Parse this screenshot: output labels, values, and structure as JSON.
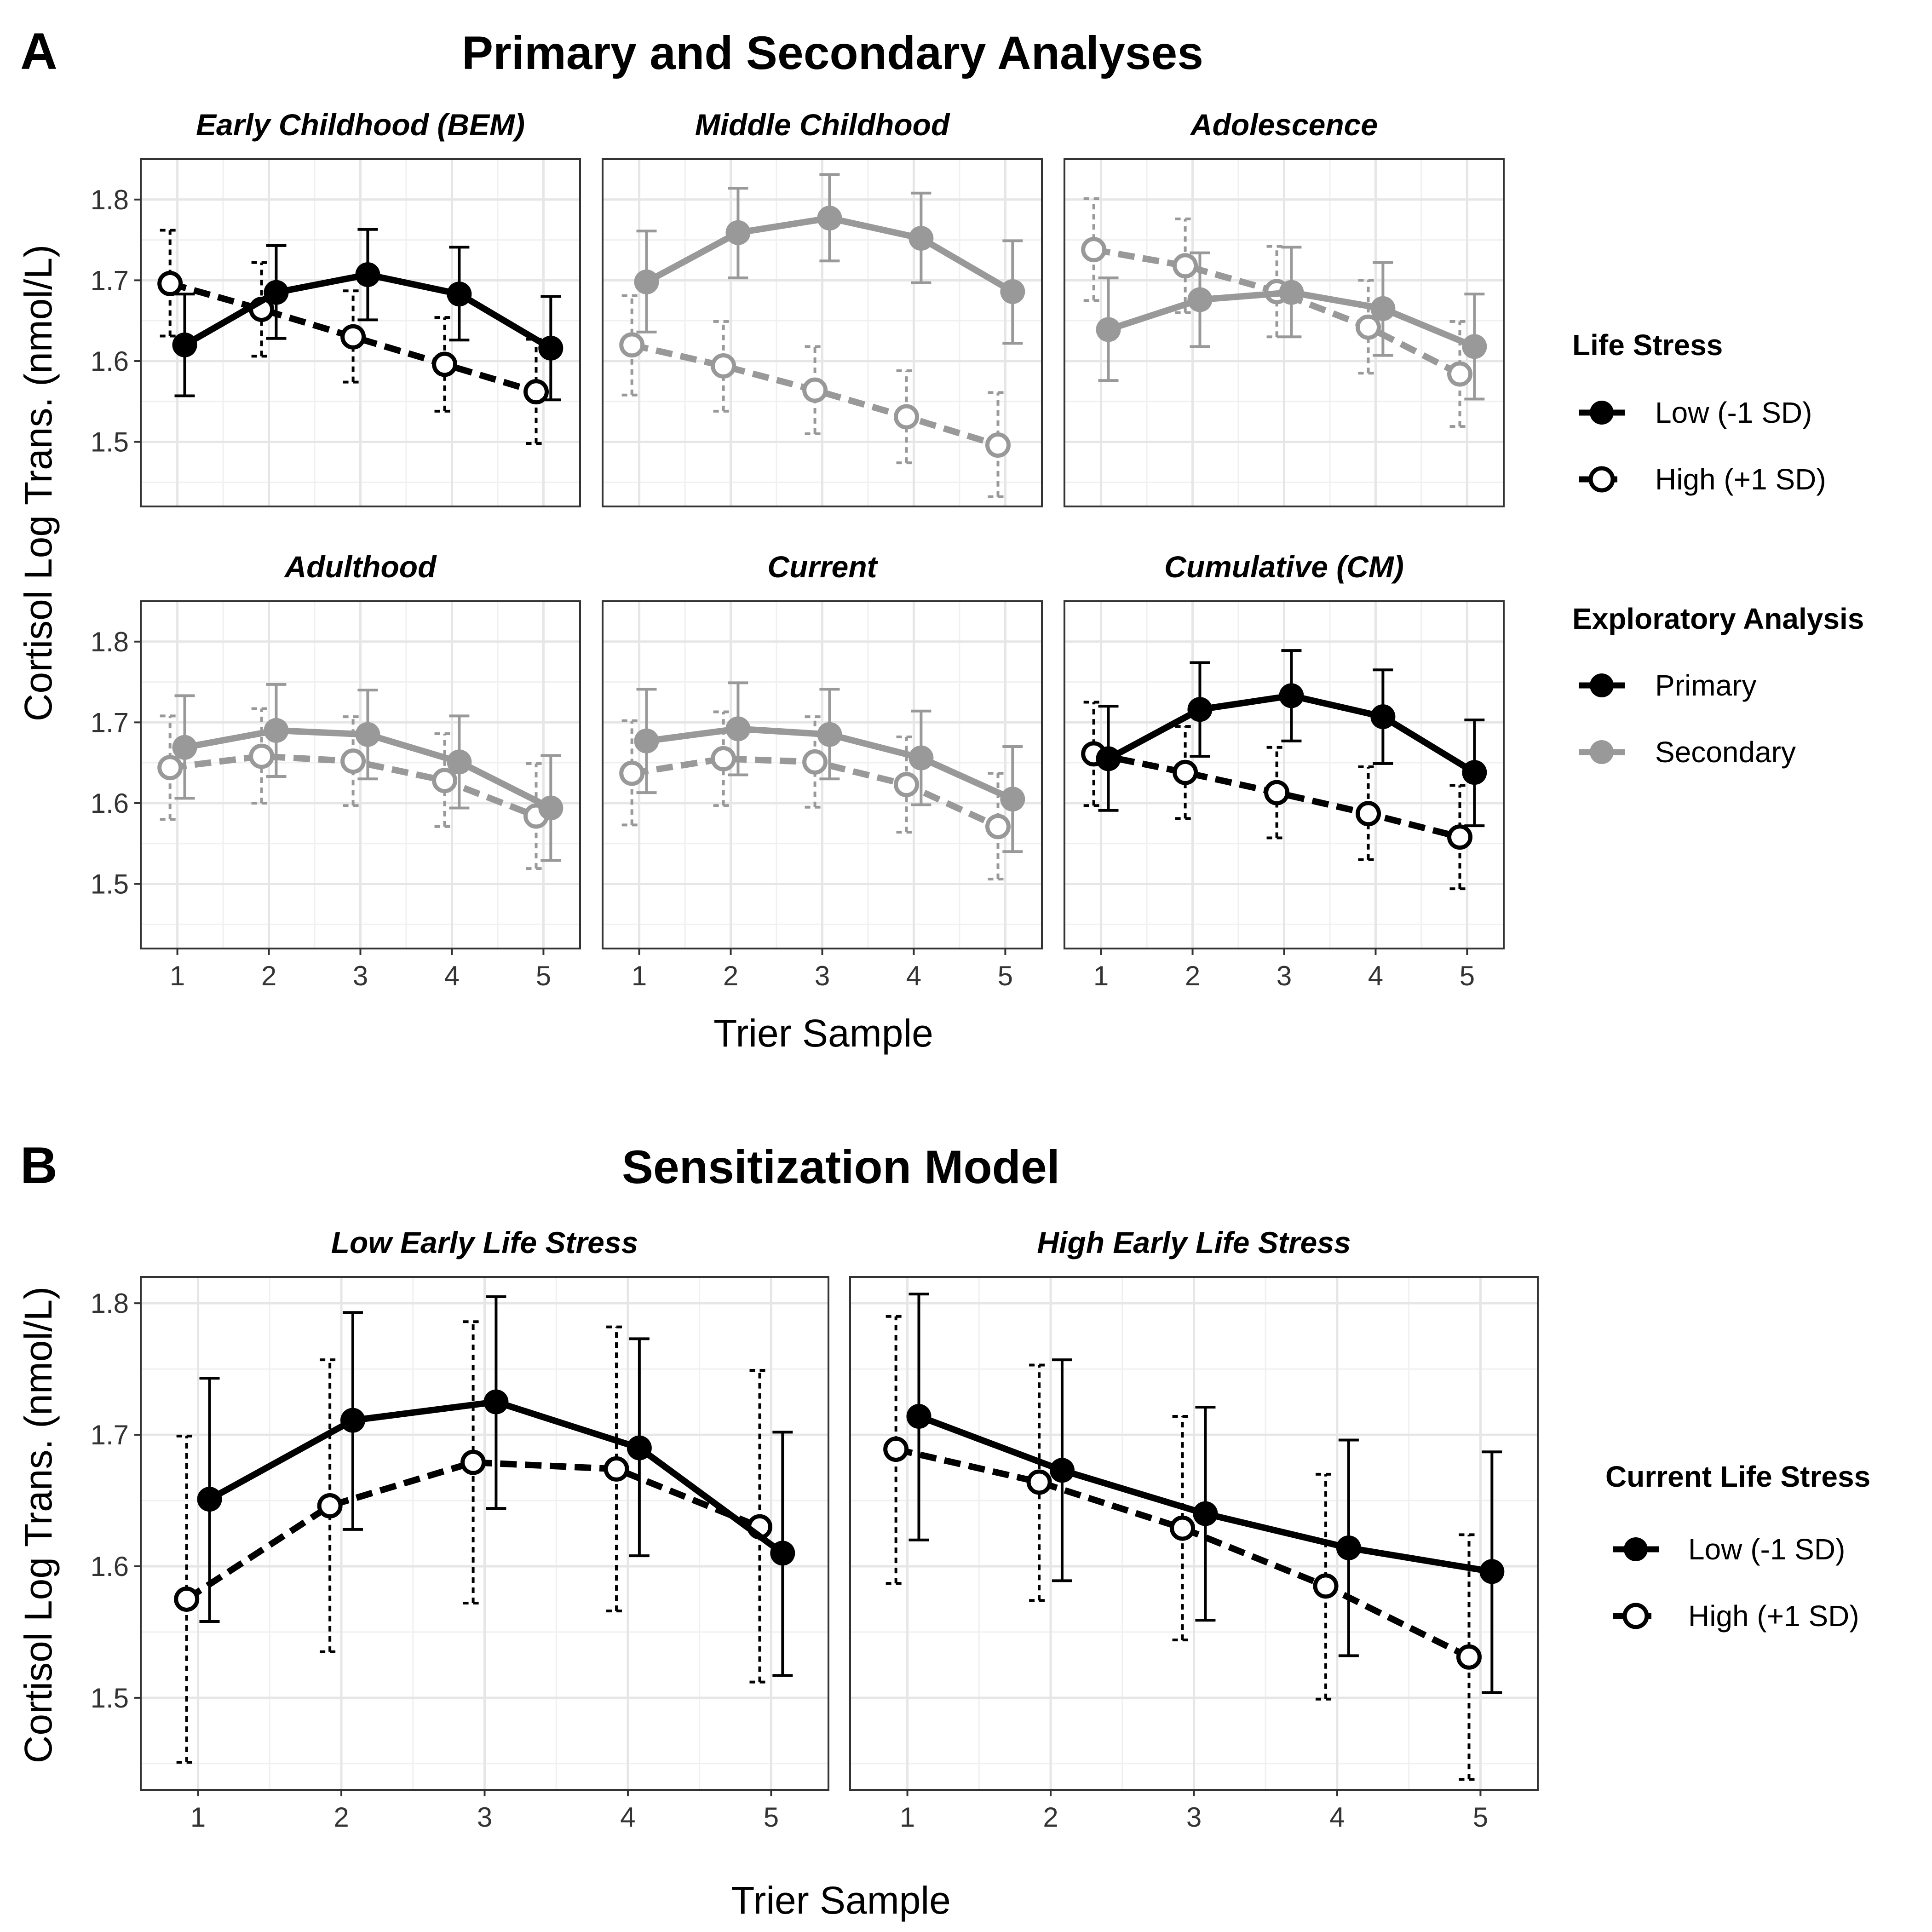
{
  "panel_a": {
    "label": "A",
    "title": "Primary and Secondary Analyses",
    "ylabel": "Cortisol Log Trans. (nmol/L)",
    "xlabel": "Trier Sample",
    "legend_stress": {
      "title": "Life Stress",
      "items": [
        "Low (-1 SD)",
        "High (+1 SD)"
      ]
    },
    "legend_analysis": {
      "title": "Exploratory Analysis",
      "items": [
        "Primary",
        "Secondary"
      ]
    }
  },
  "panel_b": {
    "label": "B",
    "title": "Sensitization Model",
    "ylabel": "Cortisol Log Trans. (nmol/L)",
    "xlabel": "Trier Sample",
    "legend": {
      "title": "Current Life Stress",
      "items": [
        "Low (-1 SD)",
        "High (+1 SD)"
      ]
    }
  },
  "colors": {
    "primary": "#000000",
    "secondary": "#999999",
    "grid": "#e6e6e6"
  },
  "chart_data": [
    {
      "type": "line",
      "panel": "A",
      "x": [
        1,
        2,
        3,
        4,
        5
      ],
      "xlabel": "Trier Sample",
      "ylabel": "Cortisol Log Trans. (nmol/L)",
      "y_ticks": [
        1.5,
        1.6,
        1.7,
        1.8
      ],
      "ylim": [
        1.42,
        1.85
      ],
      "facets": [
        {
          "title": "Early Childhood (BEM)",
          "analysis": "Primary",
          "low": {
            "name": "Low (-1 SD)",
            "values": [
              1.62,
              1.685,
              1.707,
              1.683,
              1.616
            ],
            "ci": [
              [
                1.557,
                1.683
              ],
              [
                1.628,
                1.743
              ],
              [
                1.651,
                1.763
              ],
              [
                1.626,
                1.741
              ],
              [
                1.552,
                1.68
              ]
            ]
          },
          "high": {
            "name": "High (+1 SD)",
            "values": [
              1.696,
              1.664,
              1.63,
              1.596,
              1.562
            ],
            "ci": [
              [
                1.631,
                1.762
              ],
              [
                1.606,
                1.722
              ],
              [
                1.574,
                1.687
              ],
              [
                1.538,
                1.654
              ],
              [
                1.498,
                1.627
              ]
            ]
          }
        },
        {
          "title": "Middle Childhood",
          "analysis": "Secondary",
          "low": {
            "name": "Low (-1 SD)",
            "values": [
              1.698,
              1.759,
              1.777,
              1.752,
              1.686
            ],
            "ci": [
              [
                1.636,
                1.761
              ],
              [
                1.703,
                1.814
              ],
              [
                1.724,
                1.831
              ],
              [
                1.697,
                1.808
              ],
              [
                1.622,
                1.749
              ]
            ]
          },
          "high": {
            "name": "High (+1 SD)",
            "values": [
              1.62,
              1.594,
              1.564,
              1.531,
              1.496
            ],
            "ci": [
              [
                1.558,
                1.681
              ],
              [
                1.538,
                1.649
              ],
              [
                1.51,
                1.618
              ],
              [
                1.474,
                1.588
              ],
              [
                1.432,
                1.561
              ]
            ]
          }
        },
        {
          "title": "Adolescence",
          "analysis": "Secondary",
          "low": {
            "name": "Low (-1 SD)",
            "values": [
              1.639,
              1.676,
              1.685,
              1.665,
              1.618
            ],
            "ci": [
              [
                1.576,
                1.703
              ],
              [
                1.618,
                1.734
              ],
              [
                1.63,
                1.741
              ],
              [
                1.607,
                1.722
              ],
              [
                1.553,
                1.683
              ]
            ]
          },
          "high": {
            "name": "High (+1 SD)",
            "values": [
              1.738,
              1.718,
              1.686,
              1.642,
              1.584
            ],
            "ci": [
              [
                1.675,
                1.801
              ],
              [
                1.66,
                1.776
              ],
              [
                1.63,
                1.742
              ],
              [
                1.585,
                1.7
              ],
              [
                1.519,
                1.649
              ]
            ]
          }
        },
        {
          "title": "Adulthood",
          "analysis": "Secondary",
          "low": {
            "name": "Low (-1 SD)",
            "values": [
              1.669,
              1.69,
              1.685,
              1.651,
              1.594
            ],
            "ci": [
              [
                1.606,
                1.733
              ],
              [
                1.633,
                1.747
              ],
              [
                1.63,
                1.74
              ],
              [
                1.594,
                1.708
              ],
              [
                1.529,
                1.659
              ]
            ]
          },
          "high": {
            "name": "High (+1 SD)",
            "values": [
              1.644,
              1.658,
              1.652,
              1.628,
              1.584
            ],
            "ci": [
              [
                1.58,
                1.708
              ],
              [
                1.6,
                1.717
              ],
              [
                1.597,
                1.707
              ],
              [
                1.571,
                1.686
              ],
              [
                1.519,
                1.649
              ]
            ]
          }
        },
        {
          "title": "Current",
          "analysis": "Secondary",
          "low": {
            "name": "Low (-1 SD)",
            "values": [
              1.677,
              1.692,
              1.685,
              1.656,
              1.605
            ],
            "ci": [
              [
                1.613,
                1.741
              ],
              [
                1.635,
                1.749
              ],
              [
                1.63,
                1.741
              ],
              [
                1.598,
                1.714
              ],
              [
                1.54,
                1.67
              ]
            ]
          },
          "high": {
            "name": "High (+1 SD)",
            "values": [
              1.637,
              1.655,
              1.651,
              1.623,
              1.571
            ],
            "ci": [
              [
                1.573,
                1.702
              ],
              [
                1.597,
                1.713
              ],
              [
                1.595,
                1.707
              ],
              [
                1.564,
                1.682
              ],
              [
                1.506,
                1.637
              ]
            ]
          }
        },
        {
          "title": "Cumulative (CM)",
          "analysis": "Primary",
          "low": {
            "name": "Low (-1 SD)",
            "values": [
              1.655,
              1.716,
              1.733,
              1.707,
              1.638
            ],
            "ci": [
              [
                1.591,
                1.72
              ],
              [
                1.658,
                1.774
              ],
              [
                1.677,
                1.789
              ],
              [
                1.649,
                1.765
              ],
              [
                1.572,
                1.703
              ]
            ]
          },
          "high": {
            "name": "High (+1 SD)",
            "values": [
              1.661,
              1.638,
              1.613,
              1.587,
              1.558
            ],
            "ci": [
              [
                1.597,
                1.725
              ],
              [
                1.581,
                1.695
              ],
              [
                1.557,
                1.669
              ],
              [
                1.53,
                1.645
              ],
              [
                1.494,
                1.622
              ]
            ]
          }
        }
      ]
    },
    {
      "type": "line",
      "panel": "B",
      "x": [
        1,
        2,
        3,
        4,
        5
      ],
      "xlabel": "Trier Sample",
      "ylabel": "Cortisol Log Trans. (nmol/L)",
      "y_ticks": [
        1.5,
        1.6,
        1.7,
        1.8
      ],
      "ylim": [
        1.43,
        1.82
      ],
      "facets": [
        {
          "title": "Low Early Life Stress",
          "low": {
            "name": "Low (-1 SD)",
            "values": [
              1.651,
              1.711,
              1.725,
              1.69,
              1.61
            ],
            "ci": [
              [
                1.558,
                1.743
              ],
              [
                1.628,
                1.793
              ],
              [
                1.644,
                1.805
              ],
              [
                1.608,
                1.773
              ],
              [
                1.517,
                1.702
              ]
            ]
          },
          "high": {
            "name": "High (+1 SD)",
            "values": [
              1.575,
              1.646,
              1.679,
              1.674,
              1.63
            ],
            "ci": [
              [
                1.451,
                1.699
              ],
              [
                1.535,
                1.757
              ],
              [
                1.572,
                1.786
              ],
              [
                1.566,
                1.782
              ],
              [
                1.512,
                1.749
              ]
            ]
          }
        },
        {
          "title": "High Early Life Stress",
          "low": {
            "name": "Low (-1 SD)",
            "values": [
              1.714,
              1.673,
              1.64,
              1.614,
              1.596
            ],
            "ci": [
              [
                1.62,
                1.807
              ],
              [
                1.589,
                1.757
              ],
              [
                1.559,
                1.721
              ],
              [
                1.532,
                1.696
              ],
              [
                1.504,
                1.687
              ]
            ]
          },
          "high": {
            "name": "High (+1 SD)",
            "values": [
              1.689,
              1.664,
              1.629,
              1.585,
              1.531
            ],
            "ci": [
              [
                1.587,
                1.79
              ],
              [
                1.574,
                1.753
              ],
              [
                1.544,
                1.714
              ],
              [
                1.499,
                1.67
              ],
              [
                1.438,
                1.624
              ]
            ]
          }
        }
      ]
    }
  ]
}
